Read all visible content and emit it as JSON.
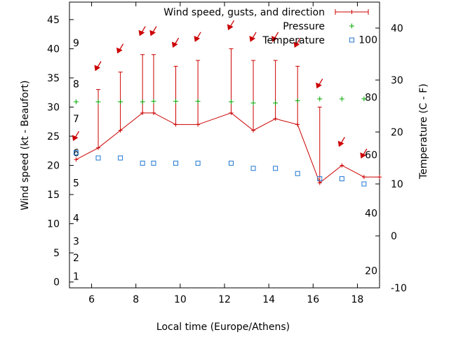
{
  "chart_data": {
    "type": "line",
    "xlabel": "Local time (Europe/Athens)",
    "ylabel": "Wind speed (kt - Beaufort)",
    "y2label": "Temperature (C - F)",
    "xlim": [
      5,
      19
    ],
    "ylim": [
      -1,
      48
    ],
    "y2lim": [
      -10,
      45
    ],
    "x_ticks": [
      6,
      8,
      10,
      12,
      14,
      16,
      18
    ],
    "y_ticks": [
      0,
      5,
      10,
      15,
      20,
      25,
      30,
      35,
      40,
      45
    ],
    "y2_ticks": [
      -10,
      0,
      10,
      20,
      30,
      40
    ],
    "beaufort_labels": [
      {
        "label": "1",
        "y": 1
      },
      {
        "label": "2",
        "y": 4.2
      },
      {
        "label": "3",
        "y": 7
      },
      {
        "label": "4",
        "y": 11
      },
      {
        "label": "5",
        "y": 17
      },
      {
        "label": "6",
        "y": 22.2
      },
      {
        "label": "7",
        "y": 28
      },
      {
        "label": "8",
        "y": 34
      },
      {
        "label": "9",
        "y": 41
      }
    ],
    "fahrenheit_labels": [
      {
        "label": "20",
        "temp": -6.7
      },
      {
        "label": "40",
        "temp": 4.4
      },
      {
        "label": "60",
        "temp": 15.6
      },
      {
        "label": "80",
        "temp": 26.7
      },
      {
        "label": "100",
        "temp": 37.8
      }
    ],
    "grid": false,
    "legend_position": "top-right",
    "colors": {
      "wind": "#cc0000",
      "pressure": "#00aa00",
      "temperature": "#1f77d0"
    },
    "series": [
      {
        "name": "Wind speed, gusts, and direction",
        "x": [
          5.3,
          6.3,
          7.3,
          8.3,
          8.8,
          9.8,
          10.8,
          12.3,
          13.3,
          14.3,
          15.3,
          16.3,
          17.3,
          18.3,
          19
        ],
        "values": [
          21,
          23,
          26,
          29,
          29,
          27,
          27,
          29,
          26,
          28,
          27,
          17,
          20,
          18,
          18
        ],
        "gusts": [
          null,
          33,
          36,
          39,
          39,
          37,
          38,
          40,
          38,
          38,
          37,
          30,
          null,
          null,
          null
        ]
      },
      {
        "name": "Pressure",
        "x": [
          5.3,
          6.3,
          7.3,
          8.3,
          8.8,
          9.8,
          10.8,
          12.3,
          13.3,
          14.3,
          15.3,
          16.3,
          17.3,
          18.3
        ],
        "values": [
          30.9,
          30.9,
          30.9,
          30.9,
          31.0,
          31.0,
          31.0,
          30.9,
          30.7,
          30.7,
          31.1,
          31.4,
          31.4,
          31.4
        ]
      },
      {
        "name": "Temperature",
        "x": [
          5.3,
          6.3,
          7.3,
          8.3,
          8.8,
          9.8,
          10.8,
          12.3,
          13.3,
          14.3,
          15.3,
          16.3,
          17.3,
          18.3
        ],
        "values": [
          16,
          15,
          15,
          14,
          14,
          14,
          14,
          14,
          13,
          13,
          12,
          11,
          11,
          10
        ]
      }
    ],
    "wind_direction_arrows": [
      {
        "x": 5.3,
        "y": 25
      },
      {
        "x": 6.3,
        "y": 37
      },
      {
        "x": 7.3,
        "y": 40
      },
      {
        "x": 8.3,
        "y": 43
      },
      {
        "x": 8.8,
        "y": 43
      },
      {
        "x": 9.8,
        "y": 41
      },
      {
        "x": 10.8,
        "y": 42
      },
      {
        "x": 12.3,
        "y": 44
      },
      {
        "x": 13.3,
        "y": 42
      },
      {
        "x": 14.3,
        "y": 42
      },
      {
        "x": 15.3,
        "y": 41
      },
      {
        "x": 16.3,
        "y": 34
      },
      {
        "x": 17.3,
        "y": 24
      },
      {
        "x": 18.3,
        "y": 22
      }
    ]
  }
}
